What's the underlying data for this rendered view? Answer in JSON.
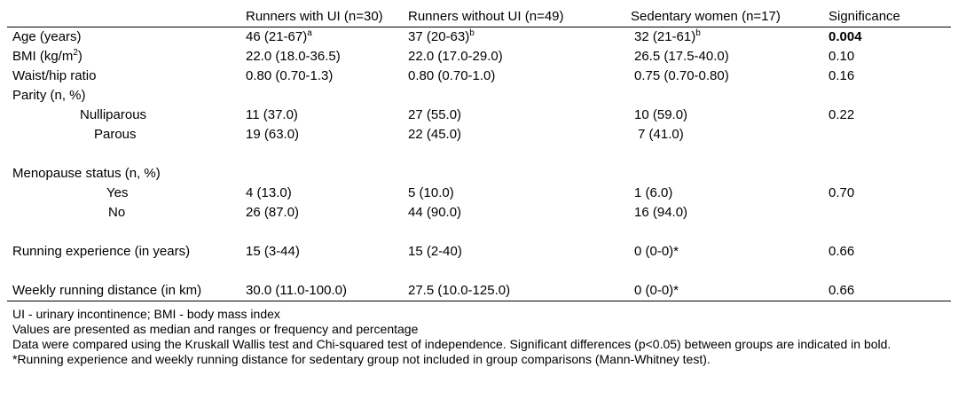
{
  "table": {
    "headers": {
      "col0": "",
      "col1": "Runners with UI (n=30)",
      "col2": "Runners without UI (n=49)",
      "col3": "Sedentary women (n=17)",
      "col4": "Significance"
    },
    "age": {
      "label": "Age (years)",
      "ui": "46 (21-67)",
      "ui_sup": "a",
      "no_ui": "37 (20-63)",
      "no_ui_sup": "b",
      "sed": "32 (21-61)",
      "sed_sup": "b",
      "sig": "0.004"
    },
    "bmi": {
      "label_prefix": "BMI (kg/m",
      "label_sup": "2",
      "label_suffix": ")",
      "ui": "22.0 (18.0-36.5)",
      "no_ui": "22.0 (17.0-29.0)",
      "sed": "26.5 (17.5-40.0)",
      "sig": "0.10"
    },
    "waist": {
      "label": "Waist/hip ratio",
      "ui": "0.80 (0.70-1.3)",
      "no_ui": "0.80 (0.70-1.0)",
      "sed": "0.75 (0.70-0.80)",
      "sig": "0.16"
    },
    "parity": {
      "label": "Parity (n, %)",
      "nulliparous": {
        "label": "Nulliparous",
        "ui": "11 (37.0)",
        "no_ui": "27 (55.0)",
        "sed": "10 (59.0)",
        "sig": "0.22"
      },
      "parous": {
        "label": "Parous",
        "ui": "19 (63.0)",
        "no_ui": "22 (45.0)",
        "sed": "7 (41.0)",
        "sig": ""
      }
    },
    "menopause": {
      "label": "Menopause status (n, %)",
      "yes": {
        "label": "Yes",
        "ui": "4 (13.0)",
        "no_ui": "5 (10.0)",
        "sed": "1 (6.0)",
        "sig": "0.70"
      },
      "no": {
        "label": "No",
        "ui": "26 (87.0)",
        "no_ui": "44 (90.0)",
        "sed": "16 (94.0)",
        "sig": ""
      }
    },
    "running_experience": {
      "label": "Running experience (in years)",
      "ui": "15 (3-44)",
      "no_ui": "15 (2-40)",
      "sed": "0 (0-0)*",
      "sig": "0.66"
    },
    "weekly_distance": {
      "label": "Weekly running distance (in km)",
      "ui": "30.0 (11.0-100.0)",
      "no_ui": "27.5 (10.0-125.0)",
      "sed": "0 (0-0)*",
      "sig": "0.66"
    }
  },
  "notes": {
    "line1": "UI - urinary incontinence; BMI - body mass index",
    "line2": "Values are presented as median and ranges or frequency and percentage",
    "line3": "Data were compared using the Kruskall Wallis test and Chi-squared test of independence. Significant differences (p<0.05) between groups are indicated in bold. *Running experience and weekly running distance for sedentary group not included in group comparisons (Mann-Whitney test)."
  }
}
